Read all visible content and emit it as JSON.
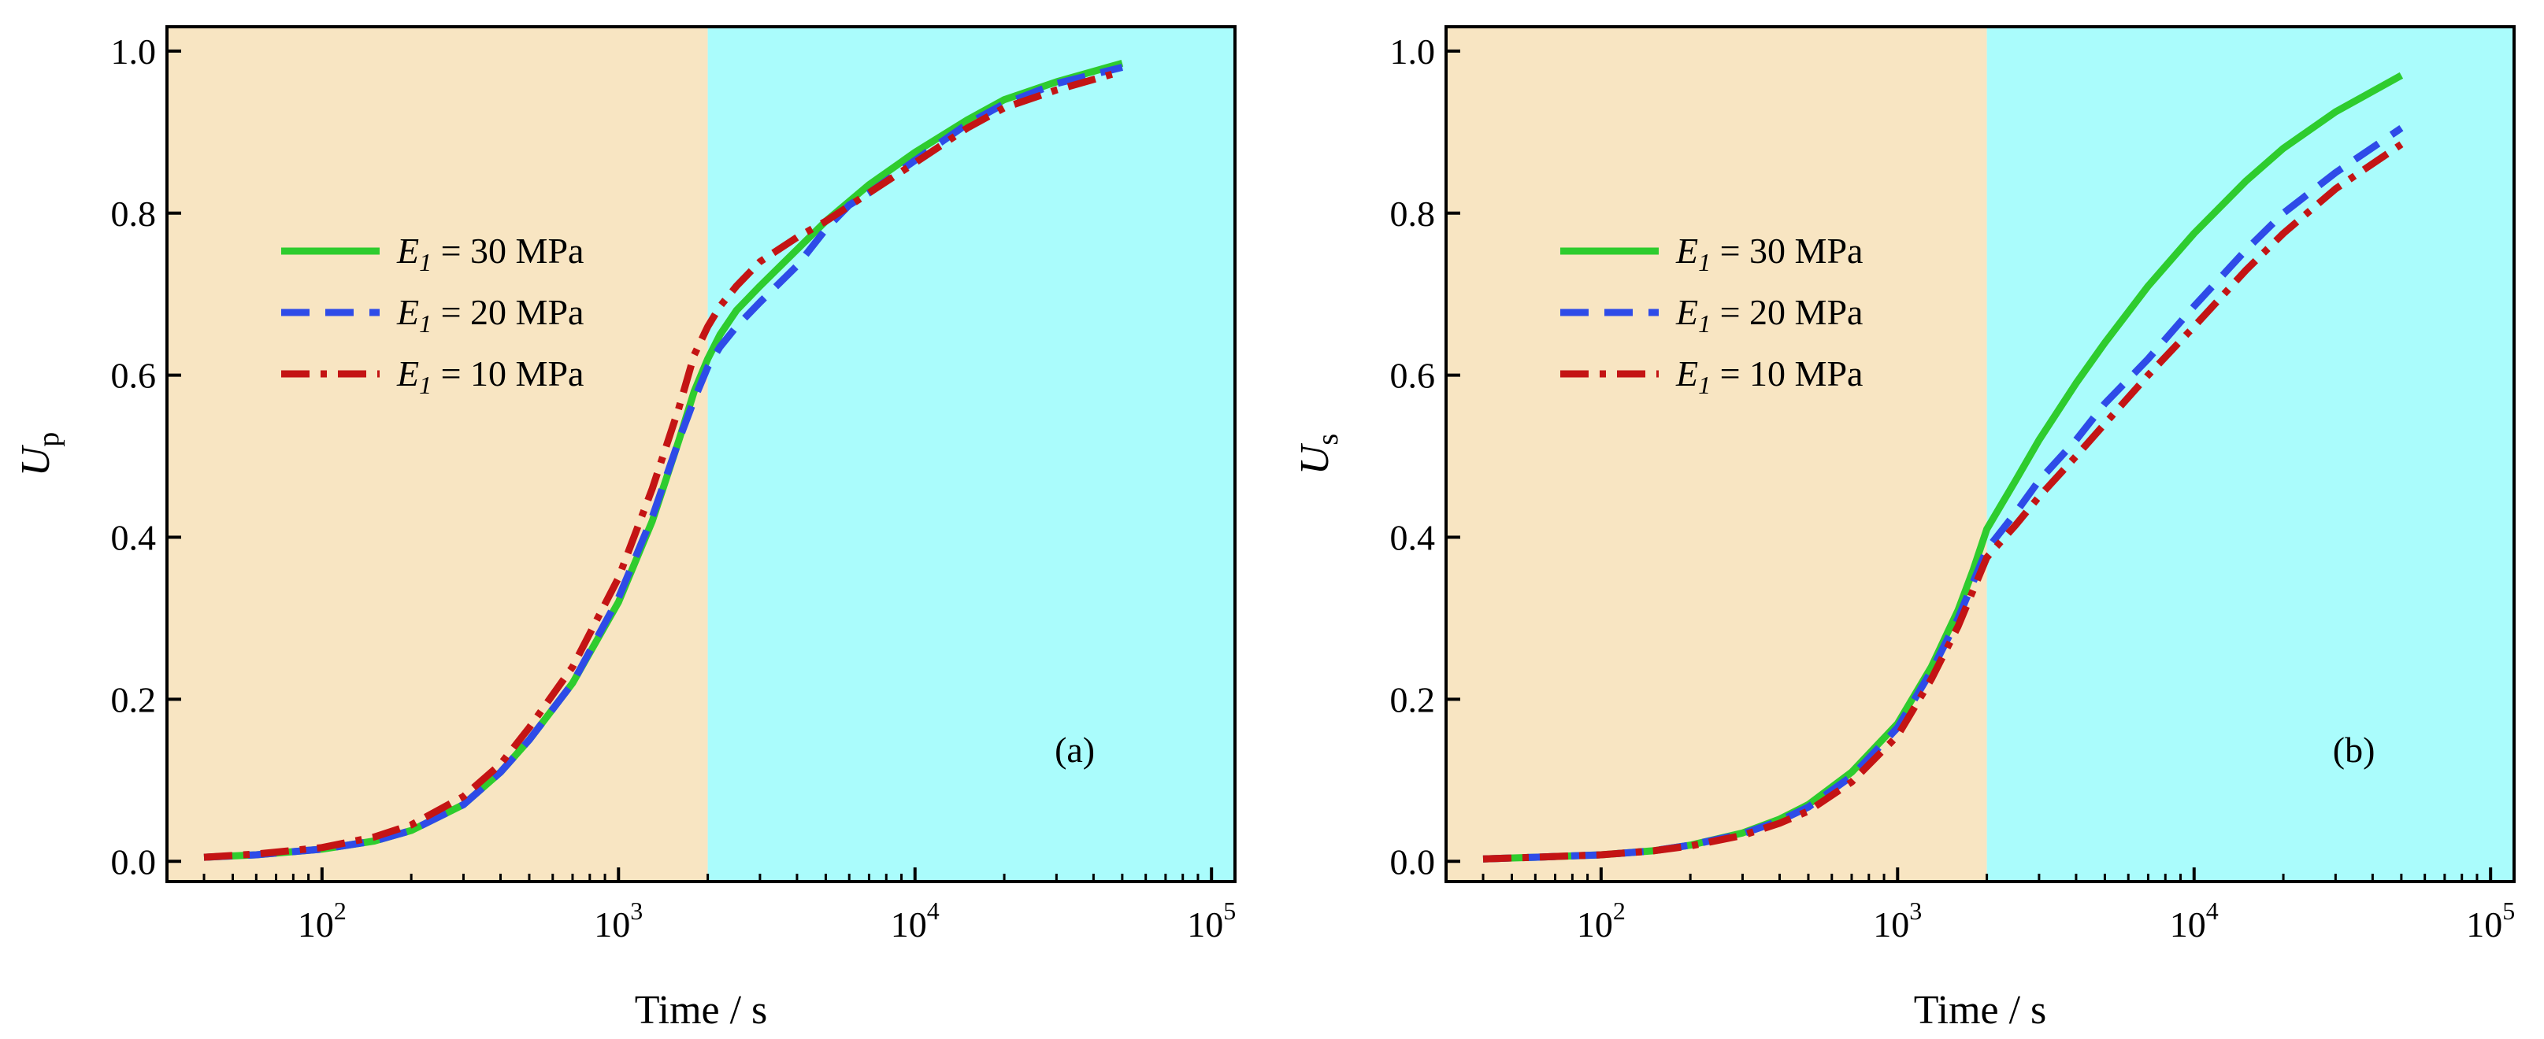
{
  "colors": {
    "stage1_bg": "#F8E5C2",
    "stage2_bg": "#AAFCFC",
    "green": "#2ECC2E",
    "blue": "#2E4BE8",
    "red": "#C41414"
  },
  "chart_data": [
    {
      "type": "line",
      "panel_label": "(a)",
      "xlabel": "Time / s",
      "ylabel": "U",
      "ylabel_sub": "p",
      "xscale": "log",
      "xlim": [
        30,
        120000
      ],
      "ylim": [
        -0.025,
        1.03
      ],
      "yticks": [
        "0.0",
        "0.2",
        "0.4",
        "0.6",
        "0.8",
        "1.0"
      ],
      "ytick_values": [
        0,
        0.2,
        0.4,
        0.6,
        0.8,
        1.0
      ],
      "xtick_values": [
        100,
        1000,
        10000,
        100000
      ],
      "xtick_exponents": [
        "2",
        "3",
        "4",
        "5"
      ],
      "xtick_base": "10",
      "shaded_regions": [
        {
          "from": 30,
          "to": 2000,
          "color": "#F8E5C2"
        },
        {
          "from": 2000,
          "to": 120000,
          "color": "#AAFCFC"
        }
      ],
      "legend": {
        "placement": "upper-left"
      },
      "series": [
        {
          "name_italic": "E",
          "name_sub": "1",
          "name_rest": " = 30 MPa",
          "color": "#2ECC2E",
          "dash": "solid",
          "x": [
            40,
            60,
            100,
            150,
            200,
            300,
            400,
            500,
            700,
            1000,
            1300,
            1600,
            1800,
            2000,
            2200,
            2500,
            3000,
            4000,
            5000,
            7000,
            10000,
            15000,
            20000,
            30000,
            50000
          ],
          "y": [
            0.005,
            0.008,
            0.015,
            0.025,
            0.038,
            0.07,
            0.11,
            0.15,
            0.22,
            0.32,
            0.42,
            0.52,
            0.58,
            0.62,
            0.65,
            0.68,
            0.71,
            0.755,
            0.79,
            0.835,
            0.875,
            0.915,
            0.94,
            0.962,
            0.985
          ]
        },
        {
          "name_italic": "E",
          "name_sub": "1",
          "name_rest": " = 20 MPa",
          "color": "#2E4BE8",
          "dash": "dash",
          "x": [
            40,
            60,
            100,
            150,
            200,
            300,
            400,
            500,
            700,
            1000,
            1300,
            1600,
            1800,
            2000,
            2200,
            2500,
            3000,
            4000,
            5000,
            6000,
            7000,
            10000,
            15000,
            20000,
            30000,
            50000
          ],
          "y": [
            0.005,
            0.008,
            0.015,
            0.025,
            0.038,
            0.07,
            0.11,
            0.15,
            0.22,
            0.325,
            0.425,
            0.52,
            0.57,
            0.61,
            0.635,
            0.66,
            0.69,
            0.735,
            0.78,
            0.81,
            0.825,
            0.865,
            0.91,
            0.935,
            0.96,
            0.98
          ]
        },
        {
          "name_italic": "E",
          "name_sub": "1",
          "name_rest": " = 10 MPa",
          "color": "#C41414",
          "dash": "dashdot",
          "x": [
            40,
            60,
            100,
            150,
            200,
            300,
            400,
            500,
            700,
            1000,
            1300,
            1600,
            1800,
            2000,
            2200,
            2500,
            3000,
            4000,
            5000,
            7000,
            10000,
            15000,
            20000,
            30000,
            50000
          ],
          "y": [
            0.005,
            0.009,
            0.017,
            0.03,
            0.045,
            0.08,
            0.12,
            0.165,
            0.24,
            0.35,
            0.46,
            0.56,
            0.625,
            0.66,
            0.685,
            0.71,
            0.74,
            0.77,
            0.79,
            0.825,
            0.862,
            0.905,
            0.93,
            0.952,
            0.975
          ]
        }
      ]
    },
    {
      "type": "line",
      "panel_label": "(b)",
      "xlabel": "Time / s",
      "ylabel": "U",
      "ylabel_sub": "s",
      "xscale": "log",
      "xlim": [
        30,
        120000
      ],
      "ylim": [
        -0.025,
        1.03
      ],
      "yticks": [
        "0.0",
        "0.2",
        "0.4",
        "0.6",
        "0.8",
        "1.0"
      ],
      "ytick_values": [
        0,
        0.2,
        0.4,
        0.6,
        0.8,
        1.0
      ],
      "xtick_values": [
        100,
        1000,
        10000,
        100000
      ],
      "xtick_exponents": [
        "2",
        "3",
        "4",
        "5"
      ],
      "xtick_base": "10",
      "shaded_regions": [
        {
          "from": 30,
          "to": 2000,
          "color": "#F8E5C2"
        },
        {
          "from": 2000,
          "to": 120000,
          "color": "#AAFCFC"
        }
      ],
      "legend": {
        "placement": "upper-left"
      },
      "series": [
        {
          "name_italic": "E",
          "name_sub": "1",
          "name_rest": " = 30 MPa",
          "color": "#2ECC2E",
          "dash": "solid",
          "x": [
            40,
            60,
            100,
            150,
            200,
            300,
            400,
            500,
            700,
            1000,
            1300,
            1600,
            1800,
            2000,
            2500,
            3000,
            4000,
            5000,
            7000,
            10000,
            15000,
            20000,
            30000,
            50000
          ],
          "y": [
            0.003,
            0.005,
            0.008,
            0.013,
            0.02,
            0.035,
            0.052,
            0.07,
            0.11,
            0.17,
            0.24,
            0.31,
            0.36,
            0.41,
            0.47,
            0.52,
            0.59,
            0.64,
            0.71,
            0.775,
            0.84,
            0.88,
            0.925,
            0.97
          ]
        },
        {
          "name_italic": "E",
          "name_sub": "1",
          "name_rest": " = 20 MPa",
          "color": "#2E4BE8",
          "dash": "dash",
          "x": [
            40,
            60,
            100,
            150,
            200,
            300,
            400,
            500,
            700,
            1000,
            1300,
            1600,
            1800,
            2000,
            2500,
            3000,
            4000,
            5000,
            7000,
            10000,
            15000,
            20000,
            30000,
            50000
          ],
          "y": [
            0.003,
            0.005,
            0.008,
            0.013,
            0.02,
            0.034,
            0.05,
            0.067,
            0.105,
            0.165,
            0.235,
            0.3,
            0.345,
            0.385,
            0.43,
            0.47,
            0.52,
            0.565,
            0.62,
            0.685,
            0.755,
            0.8,
            0.85,
            0.905
          ]
        },
        {
          "name_italic": "E",
          "name_sub": "1",
          "name_rest": " = 10 MPa",
          "color": "#C41414",
          "dash": "dashdot",
          "x": [
            40,
            60,
            100,
            150,
            200,
            300,
            400,
            500,
            700,
            1000,
            1300,
            1600,
            1800,
            2000,
            2500,
            3000,
            4000,
            5000,
            7000,
            10000,
            15000,
            20000,
            30000,
            50000
          ],
          "y": [
            0.003,
            0.005,
            0.008,
            0.013,
            0.019,
            0.032,
            0.047,
            0.062,
            0.098,
            0.155,
            0.225,
            0.29,
            0.335,
            0.375,
            0.415,
            0.45,
            0.5,
            0.54,
            0.6,
            0.66,
            0.73,
            0.775,
            0.83,
            0.885
          ]
        }
      ]
    }
  ]
}
